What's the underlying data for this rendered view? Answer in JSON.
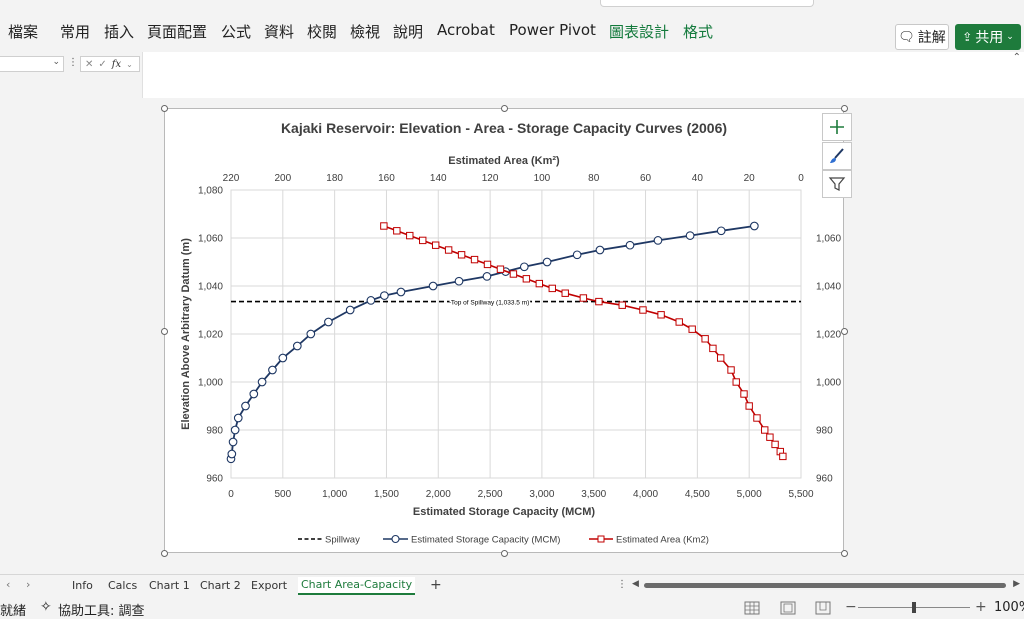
{
  "ribbon": {
    "tabs": [
      {
        "label": "檔案",
        "x": 8
      },
      {
        "label": "常用",
        "x": 60
      },
      {
        "label": "插入",
        "x": 104
      },
      {
        "label": "頁面配置",
        "x": 147
      },
      {
        "label": "公式",
        "x": 221
      },
      {
        "label": "資料",
        "x": 264
      },
      {
        "label": "校閱",
        "x": 307
      },
      {
        "label": "檢視",
        "x": 350
      },
      {
        "label": "說明",
        "x": 393
      },
      {
        "label": "Acrobat",
        "x": 437
      },
      {
        "label": "Power Pivot",
        "x": 509
      },
      {
        "label": "圖表設計",
        "x": 609
      },
      {
        "label": "格式",
        "x": 683
      }
    ],
    "comment_label": "註解",
    "share_label": "共用"
  },
  "formula_bar": {
    "fx_label": "fx"
  },
  "chart": {
    "title": "Kajaki Reservoir: Elevation - Area - Storage Capacity Curves (2006)",
    "x_bottom_label": "Estimated Storage Capacity (MCM)",
    "x_top_label": "Estimated Area (Km²)",
    "y_label": "Elevation Above Arbitrary Datum (m)",
    "spillway_annotation": "Top of Spillway (1,033.5 m)",
    "legend": [
      "Spillway",
      "Estimated Storage Capacity (MCM)",
      "Estimated Area (Km2)"
    ],
    "colors": {
      "storage": "#1f3864",
      "area": "#c00000",
      "spillway": "#000000"
    }
  },
  "chart_data": {
    "type": "line",
    "title": "Kajaki Reservoir: Elevation - Area - Storage Capacity Curves (2006)",
    "xlabel": "Estimated Storage Capacity (MCM)",
    "x2label": "Estimated Area (Km²)",
    "ylabel": "Elevation Above Arbitrary Datum (m)",
    "xlim": [
      0,
      5500
    ],
    "x2lim": [
      220,
      0
    ],
    "ylim": [
      960,
      1080
    ],
    "x_ticks": [
      "0",
      "500",
      "1,000",
      "1,500",
      "2,000",
      "2,500",
      "3,000",
      "3,500",
      "4,000",
      "4,500",
      "5,000",
      "5,500"
    ],
    "x2_ticks": [
      "220",
      "200",
      "180",
      "160",
      "140",
      "120",
      "100",
      "80",
      "60",
      "40",
      "20",
      "0"
    ],
    "y_ticks": [
      "960",
      "980",
      "1,000",
      "1,020",
      "1,040",
      "1,060",
      "1,080"
    ],
    "grid": true,
    "legend_position": "bottom",
    "spillway": {
      "name": "Spillway",
      "elevation": 1033.5
    },
    "series": [
      {
        "name": "Estimated Storage Capacity (MCM)",
        "axis": "bottom",
        "points": [
          [
            0,
            968
          ],
          [
            8,
            970
          ],
          [
            20,
            975
          ],
          [
            40,
            980
          ],
          [
            70,
            985
          ],
          [
            140,
            990
          ],
          [
            220,
            995
          ],
          [
            300,
            1000
          ],
          [
            400,
            1005
          ],
          [
            500,
            1010
          ],
          [
            640,
            1015
          ],
          [
            770,
            1020
          ],
          [
            940,
            1025
          ],
          [
            1150,
            1030
          ],
          [
            1350,
            1034
          ],
          [
            1480,
            1036
          ],
          [
            1640,
            1037.5
          ],
          [
            1950,
            1040
          ],
          [
            2200,
            1042
          ],
          [
            2470,
            1044
          ],
          [
            2650,
            1046
          ],
          [
            2830,
            1048
          ],
          [
            3050,
            1050
          ],
          [
            3340,
            1053
          ],
          [
            3560,
            1055
          ],
          [
            3850,
            1057
          ],
          [
            4120,
            1059
          ],
          [
            4430,
            1061
          ],
          [
            4730,
            1063
          ],
          [
            5050,
            1065
          ]
        ]
      },
      {
        "name": "Estimated Area (Km2)",
        "axis": "top",
        "points": [
          [
            161,
            1065
          ],
          [
            156,
            1063
          ],
          [
            151,
            1061
          ],
          [
            146,
            1059
          ],
          [
            141,
            1057
          ],
          [
            136,
            1055
          ],
          [
            131,
            1053
          ],
          [
            126,
            1051
          ],
          [
            121,
            1049
          ],
          [
            116,
            1047
          ],
          [
            111,
            1045
          ],
          [
            106,
            1043
          ],
          [
            101,
            1041
          ],
          [
            96,
            1039
          ],
          [
            91,
            1037
          ],
          [
            84,
            1035
          ],
          [
            78,
            1033.5
          ],
          [
            69,
            1032
          ],
          [
            61,
            1030
          ],
          [
            54,
            1028
          ],
          [
            47,
            1025
          ],
          [
            42,
            1022
          ],
          [
            37,
            1018
          ],
          [
            34,
            1014
          ],
          [
            31,
            1010
          ],
          [
            27,
            1005
          ],
          [
            25,
            1000
          ],
          [
            22,
            995
          ],
          [
            20,
            990
          ],
          [
            17,
            985
          ],
          [
            14,
            980
          ],
          [
            12,
            977
          ],
          [
            10,
            974
          ],
          [
            8,
            971
          ],
          [
            7,
            969
          ]
        ]
      }
    ]
  },
  "sheets": {
    "tabs": [
      {
        "label": "Info",
        "x": 72
      },
      {
        "label": "Calcs",
        "x": 108
      },
      {
        "label": "Chart 1",
        "x": 149
      },
      {
        "label": "Chart 2",
        "x": 200
      },
      {
        "label": "Export",
        "x": 251
      },
      {
        "label": "Chart Area-Capacity",
        "x": 298
      }
    ],
    "active_index": 5,
    "add_label": "+"
  },
  "status": {
    "ready": "就緒",
    "accessibility": "協助工具: 調查",
    "zoom": "100%",
    "zoom_level": 1.0
  }
}
